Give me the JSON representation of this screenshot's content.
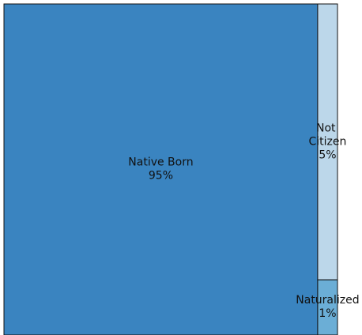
{
  "chart_data": {
    "type": "treemap",
    "categories": [
      "Native Born",
      "Not Citizen",
      "Naturalized"
    ],
    "values": [
      95,
      5,
      1
    ],
    "value_labels": [
      "95%",
      "5%",
      "1%"
    ],
    "colors": [
      "#3a84c0",
      "#bcd7ea",
      "#6baed6"
    ]
  }
}
